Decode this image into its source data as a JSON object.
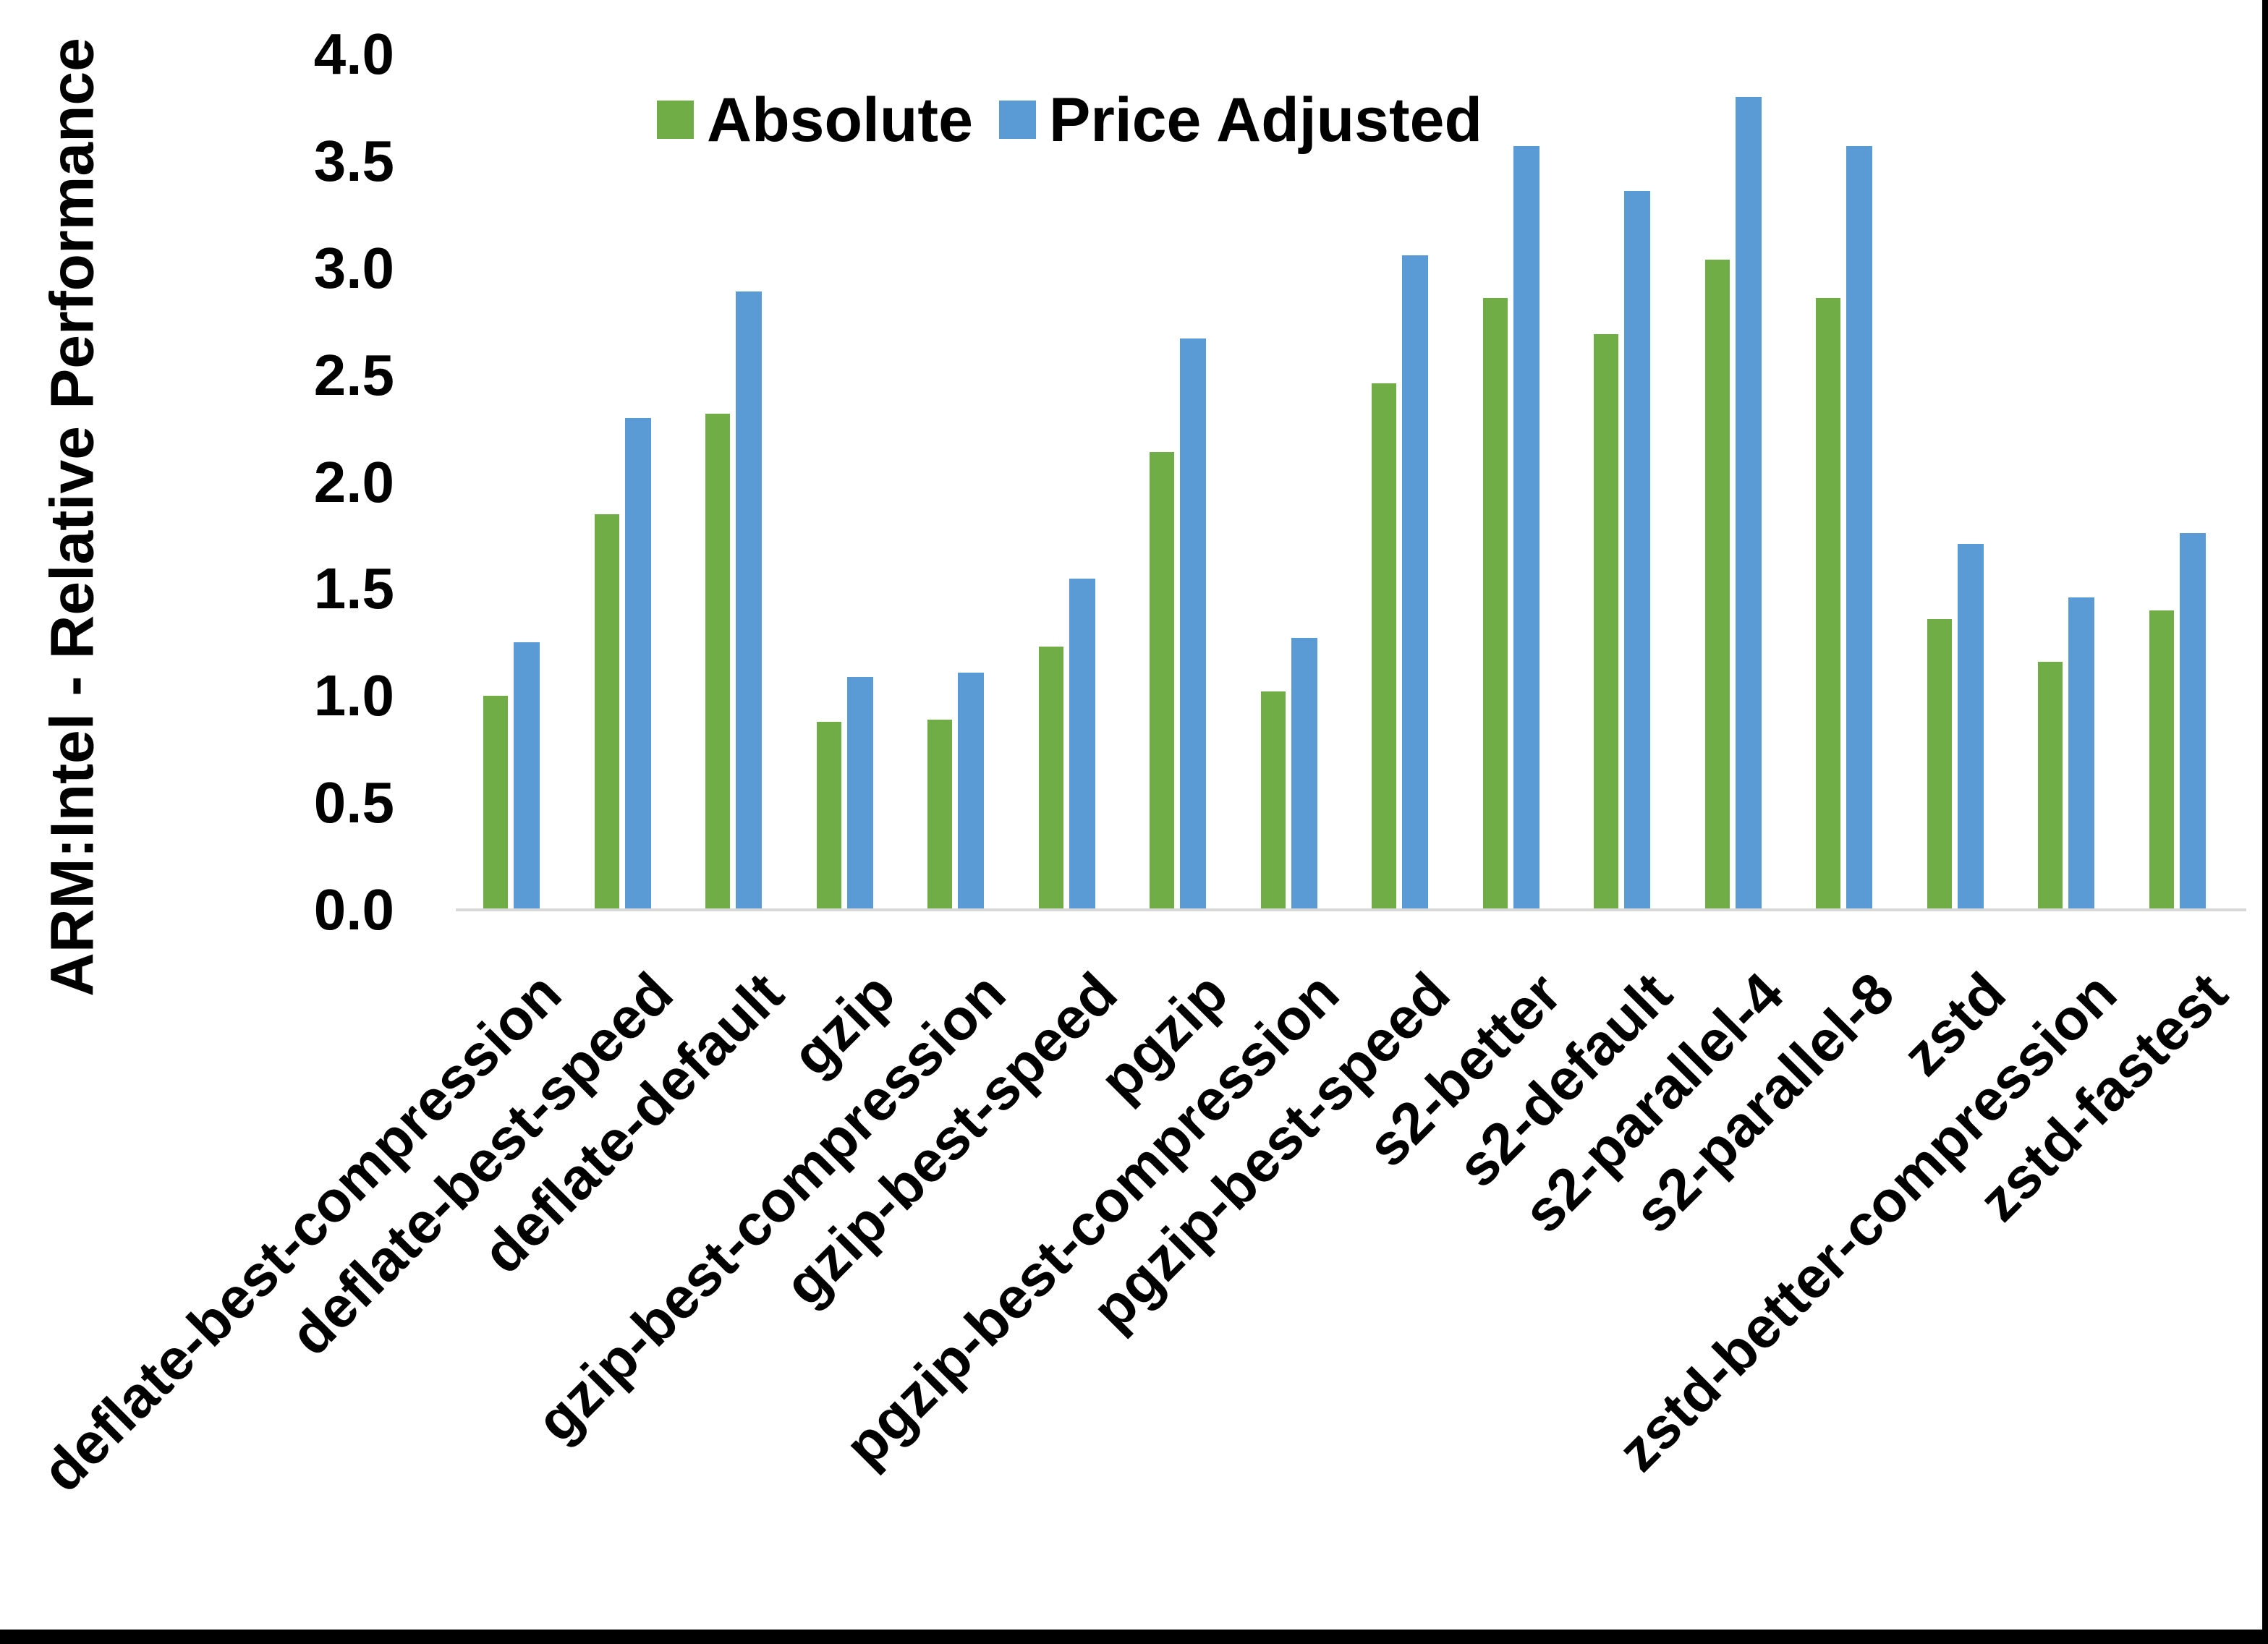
{
  "chart_data": {
    "type": "bar",
    "title": "",
    "xlabel": "",
    "ylabel": "ARM:Intel - Relative Performance",
    "ylim": [
      0.0,
      4.0
    ],
    "ytick_step": 0.5,
    "ytick_labels": [
      "0.0",
      "0.5",
      "1.0",
      "1.5",
      "2.0",
      "2.5",
      "3.0",
      "3.5",
      "4.0"
    ],
    "grid": false,
    "legend_position": "top-center",
    "categories": [
      "deflate-best-compression",
      "deflate-best-speed",
      "deflate-default",
      "gzip",
      "gzip-best-compression",
      "gzip-best-speed",
      "pgzip",
      "pgzip-best-compression",
      "pgzip-best-speed",
      "s2-better",
      "s2-default",
      "s2-parallel-4",
      "s2-parallel-8",
      "zstd",
      "zstd-better-compression",
      "zstd-fastest"
    ],
    "series": [
      {
        "name": "Absolute",
        "color": "#70AD47",
        "values": [
          1.0,
          1.85,
          2.32,
          0.88,
          0.89,
          1.23,
          2.14,
          1.02,
          2.46,
          2.86,
          2.69,
          3.04,
          2.86,
          1.36,
          1.16,
          1.4
        ]
      },
      {
        "name": "Price Adjusted",
        "color": "#5B9BD5",
        "values": [
          1.25,
          2.3,
          2.89,
          1.09,
          1.11,
          1.55,
          2.67,
          1.27,
          3.06,
          3.57,
          3.36,
          3.8,
          3.57,
          1.71,
          1.46,
          1.76
        ]
      }
    ],
    "axis_line_color": "#D9D9D9",
    "text_color": "#000000",
    "background_color": "#FFFFFF",
    "border_color": "#000000"
  }
}
